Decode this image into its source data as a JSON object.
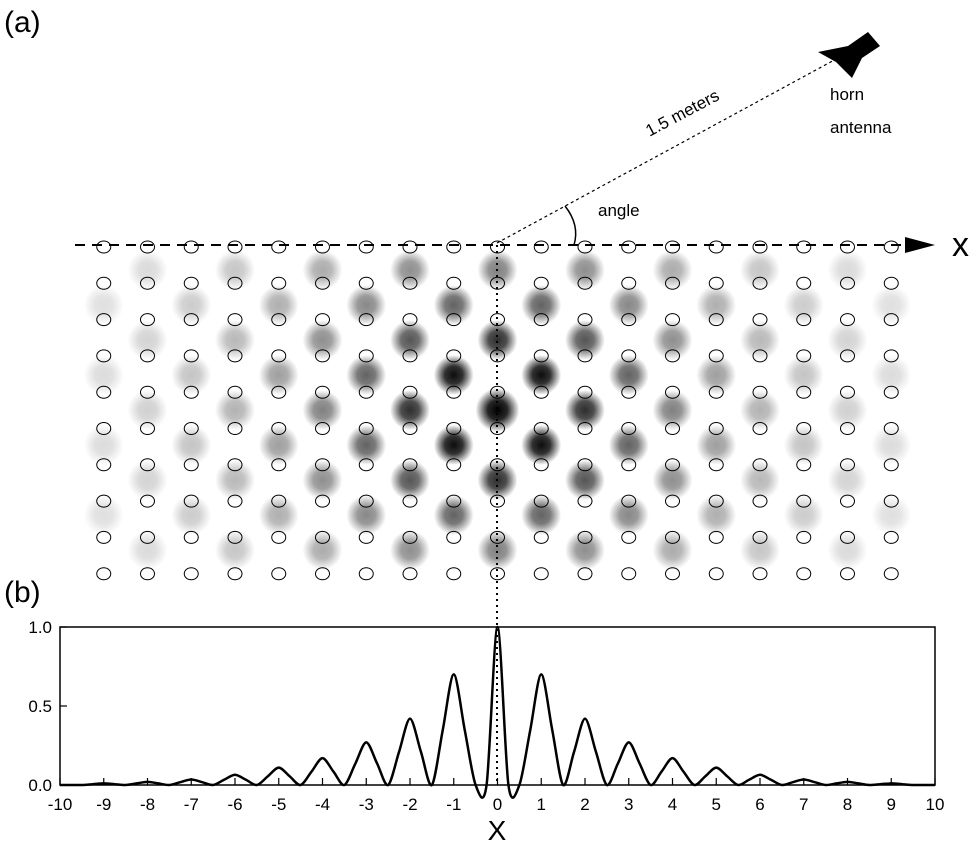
{
  "diagram": {
    "panel_a": "(a)",
    "panel_b": "(b)",
    "distance": "1.5 meters",
    "antenna": [
      "horn",
      "antenna"
    ],
    "angle": "angle",
    "axis": "x"
  },
  "chart_data": {
    "type": "line",
    "x_label": "X",
    "x": [
      -10,
      -9.75,
      -9.5,
      -9.25,
      -9,
      -8.75,
      -8.5,
      -8.25,
      -8,
      -7.75,
      -7.5,
      -7.25,
      -7,
      -6.75,
      -6.5,
      -6.25,
      -6,
      -5.75,
      -5.5,
      -5.25,
      -5,
      -4.75,
      -4.5,
      -4.25,
      -4,
      -3.75,
      -3.5,
      -3.25,
      -3,
      -2.75,
      -2.5,
      -2.25,
      -2,
      -1.75,
      -1.5,
      -1.25,
      -1,
      -0.75,
      -0.5,
      -0.25,
      0,
      0.25,
      0.5,
      0.75,
      1,
      1.25,
      1.5,
      1.75,
      2,
      2.25,
      2.5,
      2.75,
      3,
      3.25,
      3.5,
      3.75,
      4,
      4.25,
      4.5,
      4.75,
      5,
      5.25,
      5.5,
      5.75,
      6,
      6.25,
      6.5,
      6.75,
      7,
      7.25,
      7.5,
      7.75,
      8,
      8.25,
      8.5,
      8.75,
      9,
      9.25,
      9.5,
      9.75,
      10
    ],
    "series": [
      {
        "color": "#000000",
        "values": [
          0,
          0,
          0,
          0.005,
          0.01,
          0.005,
          0,
          0.01,
          0.02,
          0.01,
          0,
          0.018,
          0.035,
          0.018,
          0,
          0.033,
          0.065,
          0.033,
          0,
          0.055,
          0.11,
          0.055,
          0,
          0.085,
          0.17,
          0.085,
          0,
          0.135,
          0.27,
          0.135,
          0,
          0.21,
          0.42,
          0.21,
          0,
          0.35,
          0.7,
          0.35,
          0,
          0,
          1,
          0,
          0,
          0.35,
          0.7,
          0.35,
          0,
          0.21,
          0.42,
          0.21,
          0,
          0.135,
          0.27,
          0.135,
          0,
          0.085,
          0.17,
          0.085,
          0,
          0.055,
          0.11,
          0.055,
          0,
          0.033,
          0.065,
          0.033,
          0,
          0.018,
          0.035,
          0.018,
          0,
          0.01,
          0.02,
          0.01,
          0,
          0.005,
          0.01,
          0.005,
          0,
          0,
          0
        ]
      }
    ],
    "xlim": [
      -10,
      10
    ],
    "ylim": [
      0,
      1
    ],
    "xticks": [
      -10,
      -9,
      -8,
      -7,
      -6,
      -5,
      -4,
      -3,
      -2,
      -1,
      0,
      1,
      2,
      3,
      4,
      5,
      6,
      7,
      8,
      9,
      10
    ],
    "yticks": [
      {
        "value": 0,
        "label": "0.0"
      },
      {
        "value": 0.5,
        "label": "0.5"
      },
      {
        "value": 1,
        "label": "1.0"
      }
    ]
  }
}
